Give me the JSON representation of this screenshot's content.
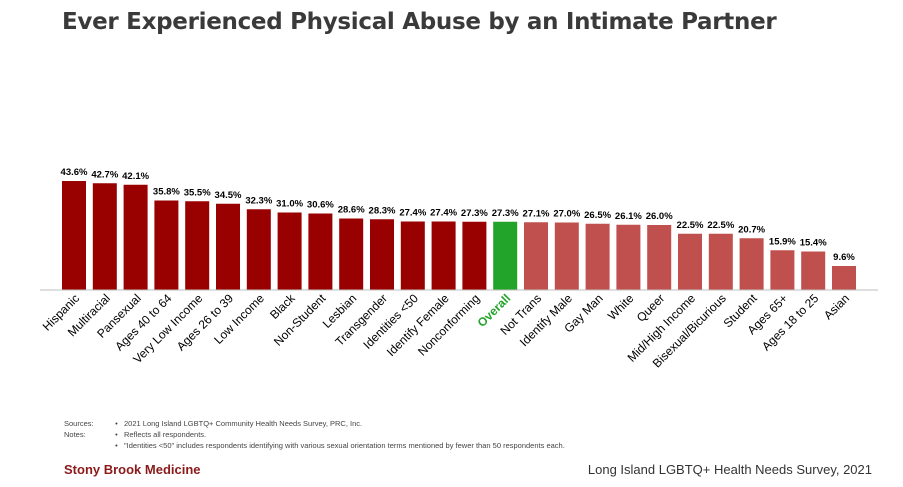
{
  "title": "Ever Experienced Physical Abuse by an Intimate Partner",
  "colors": {
    "primary": "#990000",
    "overall": "#22a32a",
    "secondary": "#c0504d"
  },
  "chart_data": {
    "type": "bar",
    "title": "Ever Experienced Physical Abuse by an Intimate Partner",
    "categories": [
      "Hispanic",
      "Multiracial",
      "Pansexual",
      "Ages 40 to 64",
      "Very Low Income",
      "Ages 26 to 39",
      "Low Income",
      "Black",
      "Non-Student",
      "Lesbian",
      "Transgender",
      "Identities <50",
      "Identify Female",
      "Nonconforming",
      "Overall",
      "Not Trans",
      "Identify Male",
      "Gay Man",
      "White",
      "Queer",
      "Mid/High Income",
      "Bisexual/Bicurious",
      "Student",
      "Ages 65+",
      "Ages 18 to 25",
      "Asian"
    ],
    "values": [
      43.6,
      42.7,
      42.1,
      35.8,
      35.5,
      34.5,
      32.3,
      31.0,
      30.6,
      28.6,
      28.3,
      27.4,
      27.4,
      27.3,
      27.3,
      27.1,
      27.0,
      26.5,
      26.1,
      26.0,
      22.5,
      22.5,
      20.7,
      15.9,
      15.4,
      9.6
    ],
    "data_labels": [
      "43.6%",
      "42.7%",
      "42.1%",
      "35.8%",
      "35.5%",
      "34.5%",
      "32.3%",
      "31.0%",
      "30.6%",
      "28.6%",
      "28.3%",
      "27.4%",
      "27.4%",
      "27.3%",
      "27.3%",
      "27.1%",
      "27.0%",
      "26.5%",
      "26.1%",
      "26.0%",
      "22.5%",
      "22.5%",
      "20.7%",
      "15.9%",
      "15.4%",
      "9.6%"
    ],
    "groups": [
      "primary",
      "primary",
      "primary",
      "primary",
      "primary",
      "primary",
      "primary",
      "primary",
      "primary",
      "primary",
      "primary",
      "primary",
      "primary",
      "primary",
      "overall",
      "secondary",
      "secondary",
      "secondary",
      "secondary",
      "secondary",
      "secondary",
      "secondary",
      "secondary",
      "secondary",
      "secondary",
      "secondary"
    ],
    "xlabel": "",
    "ylabel": "",
    "ylim": [
      0,
      100
    ],
    "grid": false
  },
  "notes": {
    "sources_label": "Sources:",
    "notes_label": "Notes:",
    "bullet": "•",
    "source_1": "2021 Long Island LGBTQ+ Community Health Needs Survey, PRC, Inc.",
    "note_1": "Reflects all respondents.",
    "note_2": "\"Identities <50\" includes respondents identifying with various sexual orientation terms mentioned by fewer than 50 respondents each."
  },
  "footer": {
    "brand": "Stony Brook Medicine",
    "survey": "Long Island LGBTQ+ Health Needs Survey, 2021"
  }
}
